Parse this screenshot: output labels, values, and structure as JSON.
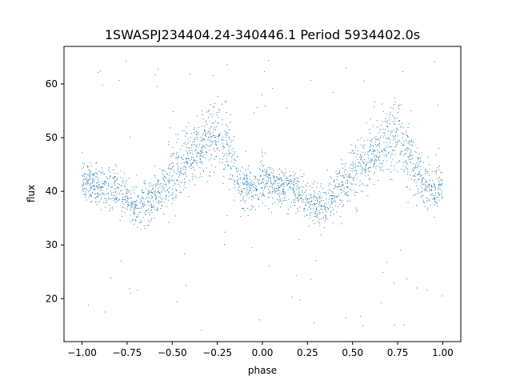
{
  "chart_data": {
    "type": "scatter",
    "title": "1SWASPJ234404.24-340446.1 Period 5934402.0s",
    "xlabel": "phase",
    "ylabel": "flux",
    "xlim": [
      -1.1,
      1.1
    ],
    "ylim": [
      12,
      67
    ],
    "x_ticks": [
      -1.0,
      -0.75,
      -0.5,
      -0.25,
      0.0,
      0.25,
      0.5,
      0.75,
      1.0
    ],
    "x_tick_labels": [
      "−1.00",
      "−0.75",
      "−0.50",
      "−0.25",
      "0.00",
      "0.25",
      "0.50",
      "0.75",
      "1.00"
    ],
    "y_ticks": [
      20,
      30,
      40,
      50,
      60
    ],
    "y_tick_labels": [
      "20",
      "30",
      "40",
      "50",
      "60"
    ],
    "grid": false,
    "marker_color": "#1f77b4",
    "profile": {
      "phase": [
        -1.0,
        -0.95,
        -0.9,
        -0.85,
        -0.8,
        -0.75,
        -0.7,
        -0.65,
        -0.6,
        -0.55,
        -0.5,
        -0.45,
        -0.4,
        -0.35,
        -0.3,
        -0.25,
        -0.2,
        -0.15,
        -0.1,
        -0.05,
        0.0
      ],
      "flux_center": [
        42,
        41.5,
        41,
        40.5,
        40,
        38.5,
        37.5,
        37.5,
        39,
        41,
        43,
        45,
        46.5,
        48,
        50,
        51,
        48,
        44,
        41,
        40,
        42
      ],
      "flux_spread": [
        3.5,
        3.5,
        3.5,
        3.5,
        3.5,
        3.5,
        3.5,
        4,
        4,
        4,
        5,
        5,
        5,
        5,
        5.5,
        5.5,
        5.5,
        5,
        4,
        3.5,
        3.5
      ]
    },
    "outlier_flux_range": [
      14,
      65
    ]
  }
}
